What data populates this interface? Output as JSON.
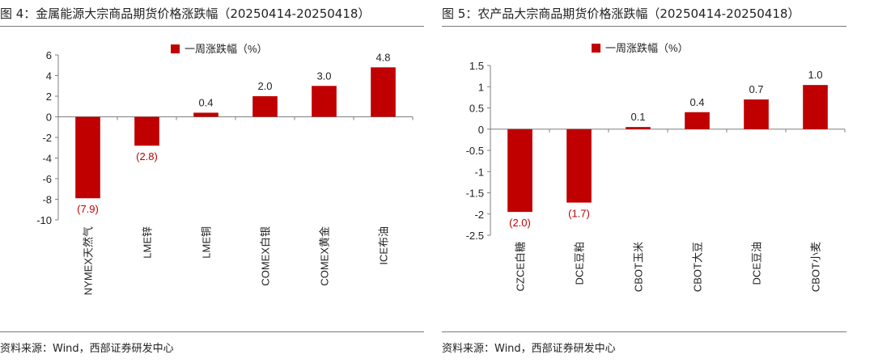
{
  "panels": [
    {
      "title": "图 4：金属能源大宗商品期货价格涨跌幅（20250414-20250418）",
      "source": "资料来源：Wind，西部证券研发中心"
    },
    {
      "title": "图 5：农产品大宗商品期货价格涨跌幅（20250414-20250418）",
      "source": "资料来源：Wind，西部证券研发中心"
    }
  ],
  "colors": {
    "bar": "#c00000",
    "negative_label": "#c00000",
    "positive_label": "#222222",
    "axis": "#7f7f7f"
  },
  "chart_data": [
    {
      "type": "bar",
      "title": "金属能源大宗商品期货价格涨跌幅（20250414-20250418）",
      "categories": [
        "NYMEX天然气",
        "LME锌",
        "LME铜",
        "COMEX白银",
        "COMEX黄金",
        "ICE布油"
      ],
      "series": [
        {
          "name": "一周涨跌幅（%）",
          "values": [
            -7.9,
            -2.8,
            0.4,
            2.0,
            3.0,
            4.8
          ]
        }
      ],
      "data_labels": [
        "(7.9)",
        "(2.8)",
        "0.4",
        "2.0",
        "3.0",
        "4.8"
      ],
      "ylim": [
        -10,
        6
      ],
      "yticks": [
        6,
        4,
        2,
        0,
        -2,
        -4,
        -6,
        -8,
        -10
      ],
      "ytick_labels": [
        "6",
        "4",
        "2",
        "0",
        "-2",
        "-4",
        "-6",
        "-8",
        "-10"
      ],
      "legend_position": "top-center",
      "grid": false
    },
    {
      "type": "bar",
      "title": "农产品大宗商品期货价格涨跌幅（20250414-20250418）",
      "categories": [
        "CZCE白糖",
        "DCE豆粕",
        "CBOT玉米",
        "CBOT大豆",
        "DCE豆油",
        "CBOT小麦"
      ],
      "series": [
        {
          "name": "一周涨跌幅（%）",
          "values": [
            -1.95,
            -1.73,
            0.05,
            0.4,
            0.7,
            1.04
          ]
        }
      ],
      "data_labels": [
        "(2.0)",
        "(1.7)",
        "0.1",
        "0.4",
        "0.7",
        "1.0"
      ],
      "ylim": [
        -2.5,
        1.5
      ],
      "yticks": [
        1.5,
        1,
        0.5,
        0,
        -0.5,
        -1,
        -1.5,
        -2,
        -2.5
      ],
      "ytick_labels": [
        "1.5",
        "1",
        "0.5",
        "0",
        "-0.5",
        "-1",
        "-1.5",
        "-2",
        "-2.5"
      ],
      "legend_position": "top-center",
      "grid": false
    }
  ]
}
